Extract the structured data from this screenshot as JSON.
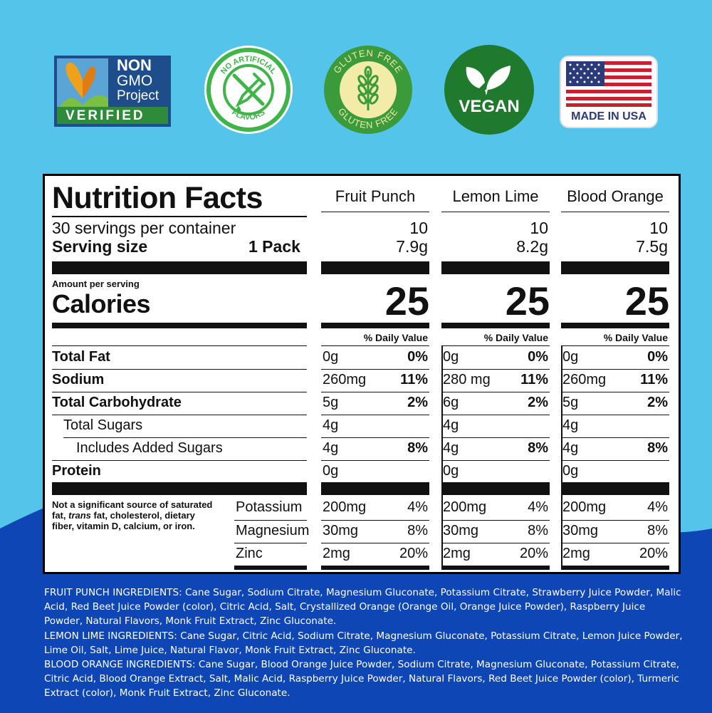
{
  "colors": {
    "sky": "#55c4ea",
    "navy": "#0f46b6",
    "ink": "#111111"
  },
  "badges": {
    "nongmo": {
      "line1": "NON",
      "line2": "GMO",
      "line3": "Project",
      "line4": "VERIFIED",
      "icon": "butterfly-icon"
    },
    "no_artificial": {
      "top": "NO ARTIFICIAL",
      "bottom": "FLAVORS",
      "icon": "dropper-icon"
    },
    "gluten_free": {
      "top": "GLUTEN FREE",
      "bottom": "GLUTEN FREE",
      "icon": "wheat-icon"
    },
    "vegan": {
      "label": "VEGAN",
      "icon": "leaf-icon"
    },
    "usa": {
      "label": "MADE IN USA",
      "icon": "us-flag-icon"
    }
  },
  "nutrition": {
    "title": "Nutrition Facts",
    "servings_text": "30 servings per container",
    "serving_size_label": "Serving size",
    "serving_size_value": "1 Pack",
    "amount_per_serving": "Amount per serving",
    "calories_label": "Calories",
    "dv_header": "% Daily Value",
    "rows": [
      "Total Fat",
      "Sodium",
      "Total Carbohydrate",
      "Total Sugars",
      "Includes Added Sugars",
      "Protein"
    ],
    "footnote_1": "Not a significant source of saturated",
    "footnote_2a": "fat, ",
    "footnote_2b": "trans",
    "footnote_2c": " fat, cholesterol, dietary",
    "footnote_3": "fiber, vitamin D, calcium, or iron.",
    "minerals": [
      "Potassium",
      "Magnesium",
      "Zinc"
    ],
    "flavors": [
      {
        "name": "Fruit Punch",
        "servings": "10",
        "serving_size": "7.9g",
        "calories": "25",
        "fat": "0g",
        "fat_dv": "0%",
        "sodium": "260mg",
        "sodium_dv": "11%",
        "carb": "5g",
        "carb_dv": "2%",
        "sugars": "4g",
        "added": "4g",
        "added_dv": "8%",
        "protein": "0g",
        "potassium": "200mg",
        "potassium_dv": "4%",
        "magnesium": "30mg",
        "magnesium_dv": "8%",
        "zinc": "2mg",
        "zinc_dv": "20%"
      },
      {
        "name": "Lemon Lime",
        "servings": "10",
        "serving_size": "8.2g",
        "calories": "25",
        "fat": "0g",
        "fat_dv": "0%",
        "sodium": "280 mg",
        "sodium_dv": "11%",
        "carb": "6g",
        "carb_dv": "2%",
        "sugars": "4g",
        "added": "4g",
        "added_dv": "8%",
        "protein": "0g",
        "potassium": "200mg",
        "potassium_dv": "4%",
        "magnesium": "30mg",
        "magnesium_dv": "8%",
        "zinc": "2mg",
        "zinc_dv": "20%"
      },
      {
        "name": "Blood Orange",
        "servings": "10",
        "serving_size": "7.5g",
        "calories": "25",
        "fat": "0g",
        "fat_dv": "0%",
        "sodium": "260mg",
        "sodium_dv": "11%",
        "carb": "5g",
        "carb_dv": "2%",
        "sugars": "4g",
        "added": "4g",
        "added_dv": "8%",
        "protein": "0g",
        "potassium": "200mg",
        "potassium_dv": "4%",
        "magnesium": "30mg",
        "magnesium_dv": "8%",
        "zinc": "2mg",
        "zinc_dv": "20%"
      }
    ]
  },
  "ingredients": {
    "fruit_punch": "FRUIT PUNCH INGREDIENTS: Cane Sugar, Sodium Citrate, Magnesium Gluconate, Potassium Citrate, Strawberry Juice Powder, Malic Acid, Red Beet Juice Powder (color), Citric Acid, Salt, Crystallized Orange (Orange Oil, Orange Juice Powder), Raspberry Juice Powder, Natural Flavors, Monk Fruit Extract, Zinc Gluconate.",
    "lemon_lime": "LEMON LIME INGREDIENTS: Cane Sugar, Citric Acid, Sodium Citrate, Magnesium Gluconate, Potassium Citrate, Lemon Juice Powder, Lime Oil, Salt, Lime Juice, Natural Flavor, Monk Fruit Extract, Zinc Gluconate.",
    "blood_orange": "BLOOD ORANGE INGREDIENTS: Cane Sugar, Blood Orange Juice Powder, Sodium Citrate, Magnesium Gluconate, Potassium Citrate, Citric Acid, Blood Orange Extract, Salt, Malic Acid, Raspberry Juice Powder, Natural Flavors, Red Beet Juice Powder (color), Turmeric Extract (color), Monk Fruit Extract, Zinc Gluconate."
  }
}
